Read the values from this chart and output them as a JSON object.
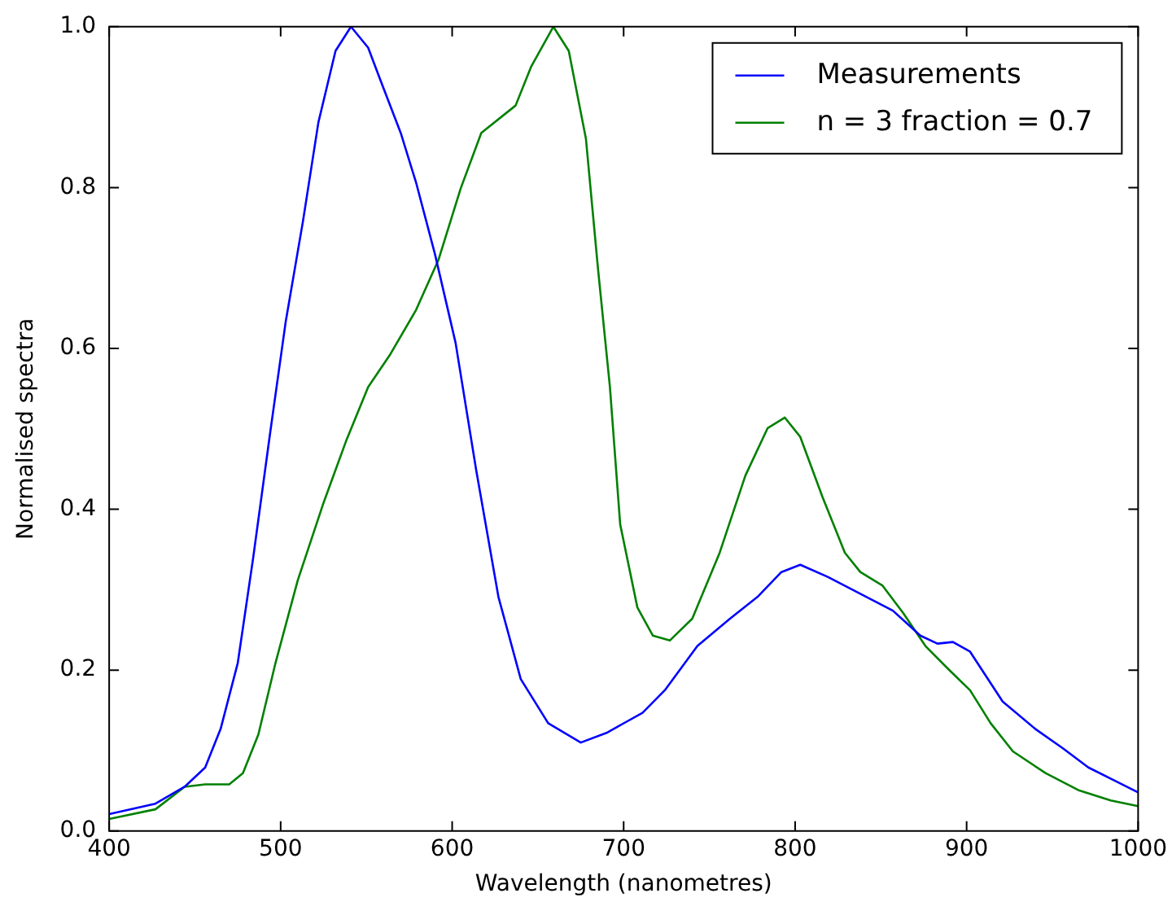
{
  "chart_data": {
    "type": "line",
    "xlabel": "Wavelength (nanometres)",
    "ylabel": "Normalised spectra",
    "xlim": [
      400,
      1000
    ],
    "ylim": [
      0,
      1.0
    ],
    "xticks": [
      400,
      500,
      600,
      700,
      800,
      900,
      1000
    ],
    "yticks": [
      {
        "value": 0,
        "label": "0.0"
      },
      {
        "value": 0.2,
        "label": "0.2"
      },
      {
        "value": 0.4,
        "label": "0.4"
      },
      {
        "value": 0.6,
        "label": "0.6"
      },
      {
        "value": 0.8,
        "label": "0.8"
      },
      {
        "value": 1.0,
        "label": "1.0"
      }
    ],
    "grid": false,
    "legend": "top right",
    "marker": "none",
    "line_style": "solid",
    "series": [
      {
        "name": "Measurements",
        "color": "#0000ff",
        "x": [
          400,
          427,
          444,
          456,
          465,
          475,
          484,
          494,
          503,
          513,
          522,
          532,
          541,
          551,
          559,
          570,
          579,
          590,
          602,
          614,
          627,
          640,
          656,
          675,
          690,
          711,
          724,
          743,
          762,
          778,
          792,
          803,
          819,
          838,
          857,
          873,
          883,
          892,
          902,
          921,
          940,
          956,
          971,
          987,
          1000
        ],
        "values": [
          0.021,
          0.034,
          0.055,
          0.079,
          0.127,
          0.209,
          0.34,
          0.497,
          0.634,
          0.758,
          0.881,
          0.97,
          1.0,
          0.974,
          0.929,
          0.868,
          0.806,
          0.717,
          0.607,
          0.449,
          0.291,
          0.189,
          0.134,
          0.11,
          0.122,
          0.147,
          0.175,
          0.23,
          0.264,
          0.291,
          0.322,
          0.331,
          0.316,
          0.295,
          0.274,
          0.243,
          0.233,
          0.235,
          0.223,
          0.161,
          0.127,
          0.103,
          0.079,
          0.062,
          0.048
        ]
      },
      {
        "name": "n = 3 fraction = 0.7",
        "color": "#008000",
        "x": [
          400,
          427,
          444,
          456,
          470,
          478,
          487,
          497,
          510,
          525,
          538,
          551,
          564,
          579,
          592,
          605,
          617,
          637,
          646,
          659,
          668,
          678,
          685,
          692,
          698,
          708,
          717,
          727,
          740,
          756,
          771,
          784,
          794,
          803,
          816,
          829,
          838,
          851,
          863,
          876,
          889,
          902,
          914,
          927,
          946,
          965,
          984,
          1000
        ],
        "values": [
          0.015,
          0.027,
          0.055,
          0.058,
          0.058,
          0.072,
          0.12,
          0.209,
          0.312,
          0.408,
          0.484,
          0.552,
          0.593,
          0.648,
          0.71,
          0.799,
          0.868,
          0.902,
          0.95,
          1.0,
          0.97,
          0.861,
          0.7,
          0.552,
          0.381,
          0.278,
          0.243,
          0.237,
          0.264,
          0.346,
          0.442,
          0.501,
          0.514,
          0.49,
          0.415,
          0.346,
          0.322,
          0.305,
          0.271,
          0.23,
          0.202,
          0.175,
          0.134,
          0.099,
          0.072,
          0.051,
          0.038,
          0.031
        ]
      }
    ]
  }
}
